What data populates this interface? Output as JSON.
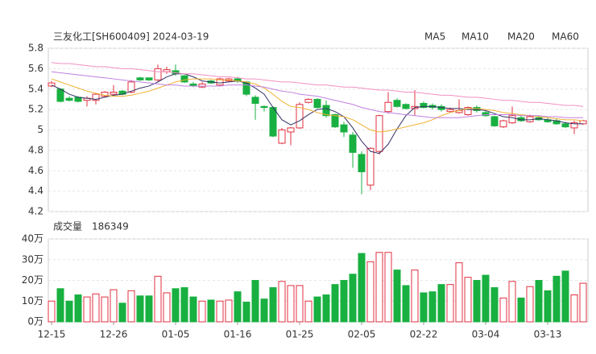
{
  "chart_data": [
    {
      "type": "candlestick",
      "title": "三友化工[SH600409] 2024-03-19",
      "up_color": "#e03040",
      "down_color": "#18b040",
      "ylim": [
        4.2,
        5.8
      ],
      "yticks": [
        4.2,
        4.4,
        4.6,
        4.8,
        5,
        5.2,
        5.4,
        5.6,
        5.8
      ],
      "grid": true,
      "ohlc": {
        "open": [
          5.43,
          5.4,
          5.31,
          5.32,
          5.29,
          5.29,
          5.33,
          5.35,
          5.38,
          5.37,
          5.51,
          5.51,
          5.49,
          5.57,
          5.58,
          5.53,
          5.45,
          5.42,
          5.48,
          5.44,
          5.48,
          5.5,
          5.47,
          5.32,
          5.23,
          5.22,
          4.87,
          4.98,
          5.02,
          5.27,
          5.3,
          5.24,
          5.15,
          5.05,
          4.95,
          4.76,
          4.46,
          4.79,
          5.18,
          5.29,
          5.25,
          5.21,
          5.26,
          5.24,
          5.23,
          5.18,
          5.17,
          5.15,
          5.22,
          5.17,
          5.13,
          5.03,
          5.07,
          5.12,
          5.08,
          5.12,
          5.1,
          5.09,
          5.06,
          5.02,
          5.06
        ],
        "high": [
          5.48,
          5.41,
          5.33,
          5.33,
          5.33,
          5.36,
          5.38,
          5.44,
          5.39,
          5.49,
          5.52,
          5.51,
          5.64,
          5.62,
          5.64,
          5.54,
          5.47,
          5.47,
          5.49,
          5.51,
          5.51,
          5.52,
          5.48,
          5.34,
          5.24,
          5.23,
          5.02,
          5.03,
          5.27,
          5.31,
          5.31,
          5.29,
          5.16,
          5.08,
          4.98,
          4.79,
          4.83,
          5.15,
          5.37,
          5.31,
          5.26,
          5.39,
          5.28,
          5.26,
          5.25,
          5.22,
          5.3,
          5.23,
          5.24,
          5.19,
          5.14,
          5.1,
          5.23,
          5.14,
          5.15,
          5.14,
          5.12,
          5.11,
          5.08,
          5.09,
          5.1
        ],
        "low": [
          5.42,
          5.27,
          5.28,
          5.27,
          5.23,
          5.25,
          5.32,
          5.34,
          5.34,
          5.36,
          5.48,
          5.48,
          5.47,
          5.55,
          5.53,
          5.46,
          5.42,
          5.41,
          5.45,
          5.43,
          5.47,
          5.46,
          5.33,
          5.1,
          5.18,
          4.93,
          4.86,
          4.85,
          5.01,
          5.26,
          5.21,
          5.12,
          5.02,
          4.93,
          4.63,
          4.37,
          4.41,
          4.76,
          5.16,
          5.22,
          5.2,
          5.14,
          5.21,
          5.2,
          5.18,
          5.17,
          5.16,
          5.14,
          5.17,
          5.13,
          5.03,
          5.02,
          5.06,
          5.08,
          5.07,
          5.09,
          5.07,
          5.05,
          5.02,
          4.96,
          5.05
        ],
        "close": [
          5.46,
          5.28,
          5.29,
          5.28,
          5.31,
          5.35,
          5.37,
          5.37,
          5.35,
          5.47,
          5.49,
          5.49,
          5.6,
          5.59,
          5.55,
          5.47,
          5.43,
          5.45,
          5.46,
          5.5,
          5.5,
          5.48,
          5.35,
          5.26,
          5.22,
          4.94,
          5.0,
          5.02,
          5.25,
          5.3,
          5.22,
          5.14,
          5.03,
          4.98,
          4.78,
          4.59,
          4.82,
          5.14,
          5.27,
          5.23,
          5.21,
          5.23,
          5.22,
          5.22,
          5.2,
          5.2,
          5.19,
          5.22,
          5.19,
          5.14,
          5.04,
          5.09,
          5.14,
          5.09,
          5.13,
          5.1,
          5.08,
          5.06,
          5.03,
          5.07,
          5.09
        ]
      },
      "series": [
        {
          "name": "MA5",
          "color": "#333366",
          "values": [
            5.44,
            5.4,
            5.35,
            5.32,
            5.31,
            5.3,
            5.32,
            5.34,
            5.35,
            5.38,
            5.41,
            5.43,
            5.47,
            5.52,
            5.55,
            5.55,
            5.52,
            5.48,
            5.47,
            5.46,
            5.47,
            5.48,
            5.46,
            5.41,
            5.35,
            5.22,
            5.1,
            5.05,
            5.09,
            5.15,
            5.2,
            5.21,
            5.18,
            5.13,
            5.02,
            4.89,
            4.79,
            4.77,
            4.86,
            5.01,
            5.14,
            5.22,
            5.23,
            5.23,
            5.22,
            5.21,
            5.21,
            5.2,
            5.2,
            5.19,
            5.16,
            5.13,
            5.12,
            5.1,
            5.1,
            5.11,
            5.1,
            5.09,
            5.07,
            5.06,
            5.06
          ]
        },
        {
          "name": "MA10",
          "color": "#f0b030",
          "values": [
            5.5,
            5.47,
            5.44,
            5.41,
            5.38,
            5.36,
            5.34,
            5.33,
            5.33,
            5.34,
            5.36,
            5.38,
            5.41,
            5.44,
            5.47,
            5.49,
            5.5,
            5.5,
            5.5,
            5.49,
            5.49,
            5.48,
            5.47,
            5.45,
            5.41,
            5.35,
            5.28,
            5.23,
            5.22,
            5.2,
            5.17,
            5.15,
            5.14,
            5.13,
            5.1,
            5.05,
            5.0,
            4.98,
            4.99,
            5.01,
            5.03,
            5.05,
            5.07,
            5.1,
            5.14,
            5.17,
            5.19,
            5.21,
            5.21,
            5.2,
            5.19,
            5.17,
            5.16,
            5.15,
            5.14,
            5.13,
            5.12,
            5.11,
            5.1,
            5.1,
            5.09
          ]
        },
        {
          "name": "MA20",
          "color": "#c080e0",
          "values": [
            5.57,
            5.56,
            5.55,
            5.54,
            5.53,
            5.52,
            5.51,
            5.5,
            5.49,
            5.48,
            5.47,
            5.46,
            5.45,
            5.44,
            5.44,
            5.43,
            5.43,
            5.43,
            5.43,
            5.43,
            5.44,
            5.44,
            5.44,
            5.43,
            5.42,
            5.4,
            5.38,
            5.37,
            5.35,
            5.34,
            5.33,
            5.31,
            5.29,
            5.27,
            5.25,
            5.22,
            5.2,
            5.18,
            5.17,
            5.16,
            5.15,
            5.14,
            5.13,
            5.12,
            5.12,
            5.12,
            5.12,
            5.13,
            5.14,
            5.15,
            5.15,
            5.15,
            5.15,
            5.14,
            5.14,
            5.14,
            5.13,
            5.13,
            5.12,
            5.12,
            5.12
          ]
        },
        {
          "name": "MA60",
          "color": "#f090c0",
          "values": [
            5.66,
            5.65,
            5.65,
            5.64,
            5.63,
            5.62,
            5.62,
            5.61,
            5.6,
            5.6,
            5.59,
            5.58,
            5.57,
            5.57,
            5.56,
            5.55,
            5.55,
            5.54,
            5.53,
            5.52,
            5.52,
            5.51,
            5.5,
            5.5,
            5.49,
            5.48,
            5.47,
            5.47,
            5.46,
            5.45,
            5.44,
            5.44,
            5.43,
            5.42,
            5.42,
            5.41,
            5.4,
            5.39,
            5.39,
            5.38,
            5.37,
            5.37,
            5.36,
            5.35,
            5.34,
            5.34,
            5.33,
            5.32,
            5.32,
            5.31,
            5.3,
            5.29,
            5.29,
            5.28,
            5.27,
            5.27,
            5.26,
            5.25,
            5.24,
            5.24,
            5.23
          ]
        }
      ]
    },
    {
      "type": "bar",
      "title": "成交量",
      "latest": 186349,
      "categories": [
        "12-15",
        null,
        null,
        null,
        null,
        null,
        null,
        "12-26",
        null,
        null,
        null,
        null,
        null,
        null,
        "01-05",
        null,
        null,
        null,
        null,
        null,
        null,
        "01-16",
        null,
        null,
        null,
        null,
        null,
        null,
        "01-25",
        null,
        null,
        null,
        null,
        null,
        null,
        "02-05",
        null,
        null,
        null,
        null,
        null,
        null,
        "02-22",
        null,
        null,
        null,
        null,
        null,
        null,
        "03-04",
        null,
        null,
        null,
        null,
        null,
        null,
        "03-13",
        null,
        null,
        null,
        null
      ],
      "values": [
        10,
        16,
        10,
        13,
        12,
        13.5,
        12,
        15.5,
        9,
        15,
        12.5,
        12.5,
        22,
        14,
        16,
        16.5,
        12,
        10,
        10.5,
        10,
        10.5,
        14.5,
        9.5,
        20,
        11,
        16.5,
        19.5,
        17.5,
        17.5,
        10,
        12,
        13,
        18,
        20,
        23,
        33,
        29,
        33.5,
        33.5,
        25,
        17.5,
        25,
        14,
        14.5,
        18,
        18,
        28.5,
        21.5,
        20,
        22.5,
        16.5,
        11.5,
        19.5,
        11.5,
        17,
        20,
        15,
        22,
        24.5,
        13,
        18.63
      ],
      "ylim": [
        0,
        40
      ],
      "yticks": [
        {
          "value": 0,
          "label": "0万"
        },
        {
          "value": 10,
          "label": "10万"
        },
        {
          "value": 20,
          "label": "20万"
        },
        {
          "value": 30,
          "label": "30万"
        },
        {
          "value": 40,
          "label": "40万"
        }
      ],
      "grid": true
    }
  ]
}
